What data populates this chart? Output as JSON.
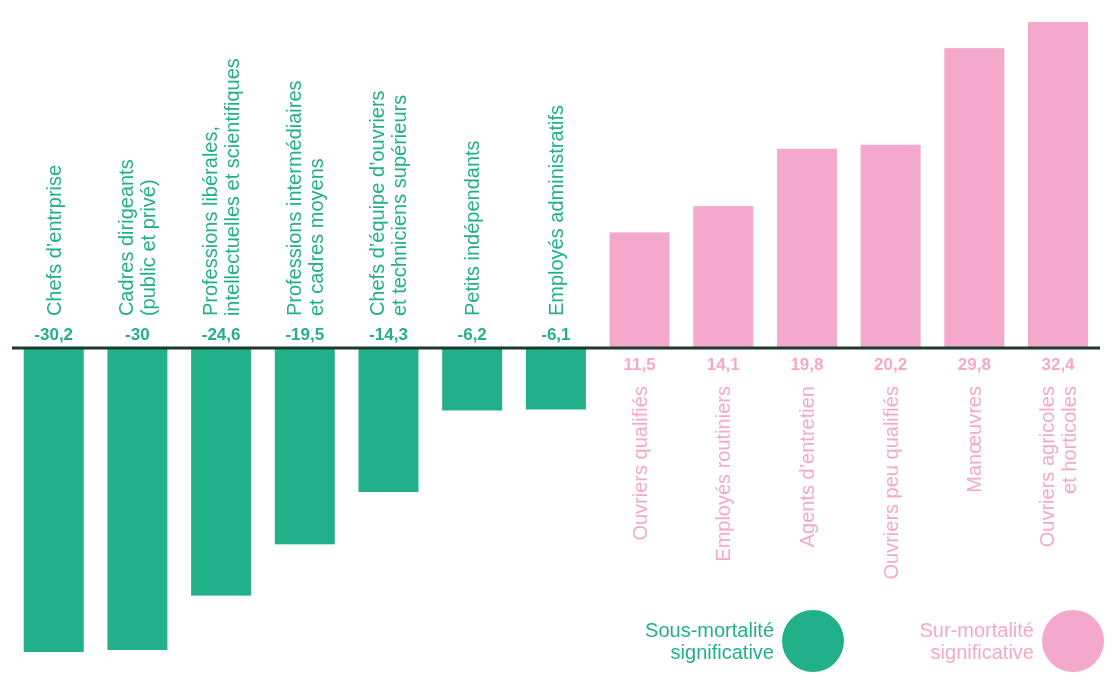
{
  "chart_data": {
    "type": "bar",
    "categories": [
      "Chefs d’entrprise",
      "Cadres dirigeants\n(public et privé)",
      "Professions libérales,\nintellectuelles et scientifiques",
      "Professions intermédiaires\net cadres moyens",
      "Chefs d’équipe d’ouvriers\net techniciens supérieurs",
      "Petits indépendants",
      "Employés administratifs",
      "Ouvriers qualifiés",
      "Employés routiniers",
      "Agents d’entretien",
      "Ouvriers peu qualifiés",
      "Manœuvres",
      "Ouvriers agricoles\net horticoles"
    ],
    "stacked": true,
    "series": [
      {
        "name": "Sous-mortalité significative",
        "color": "#22b08a",
        "values": [
          -30.2,
          -30,
          -24.6,
          -19.5,
          -14.3,
          -6.2,
          -6.1,
          null,
          null,
          null,
          null,
          null,
          null
        ],
        "value_labels": [
          "-30,2",
          "-30",
          "-24,6",
          "-19,5",
          "-14,3",
          "-6,2",
          "-6,1",
          null,
          null,
          null,
          null,
          null,
          null
        ]
      },
      {
        "name": "Sur-mortalité significative",
        "color": "#f4a8cb",
        "values": [
          null,
          null,
          null,
          null,
          null,
          null,
          null,
          11.5,
          14.1,
          19.8,
          20.2,
          29.8,
          32.4
        ],
        "value_labels": [
          null,
          null,
          null,
          null,
          null,
          null,
          null,
          "11,5",
          "14,1",
          "19,8",
          "20,2",
          "29,8",
          "32,4"
        ]
      }
    ],
    "legend": "bottom right"
  }
}
